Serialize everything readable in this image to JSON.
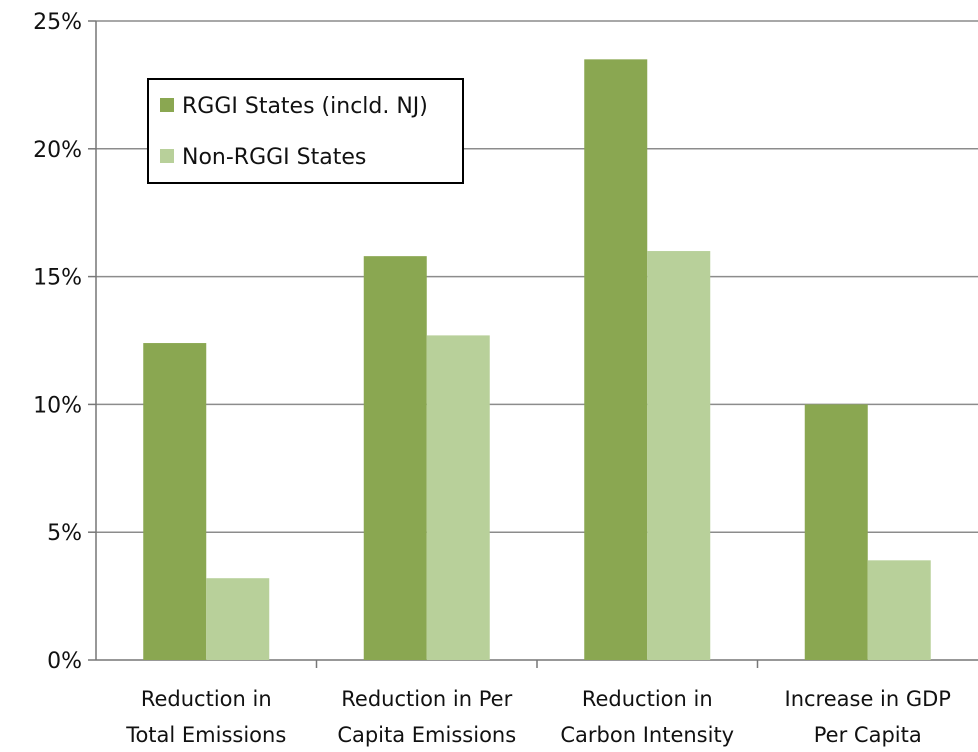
{
  "chart_data": {
    "type": "bar",
    "categories": [
      [
        "Reduction in",
        "Total Emissions"
      ],
      [
        "Reduction in Per",
        "Capita Emissions"
      ],
      [
        "Reduction in",
        "Carbon Intensity"
      ],
      [
        "Increase in GDP",
        "Per Capita"
      ]
    ],
    "series": [
      {
        "name": "RGGI States (incld. NJ)",
        "color": "#8aa751",
        "values": [
          12.4,
          15.8,
          23.5,
          10.0
        ]
      },
      {
        "name": "Non-RGGI States",
        "color": "#b8d09a",
        "values": [
          3.2,
          12.7,
          16.0,
          3.9
        ]
      }
    ],
    "yticks": [
      "0%",
      "5%",
      "10%",
      "15%",
      "20%",
      "25%"
    ],
    "ylim": [
      0,
      25
    ],
    "ytick_step": 5,
    "grid": true,
    "legend_position": "top-left",
    "gridline_color": "#8c8c8c",
    "axis_color": "#777777"
  }
}
